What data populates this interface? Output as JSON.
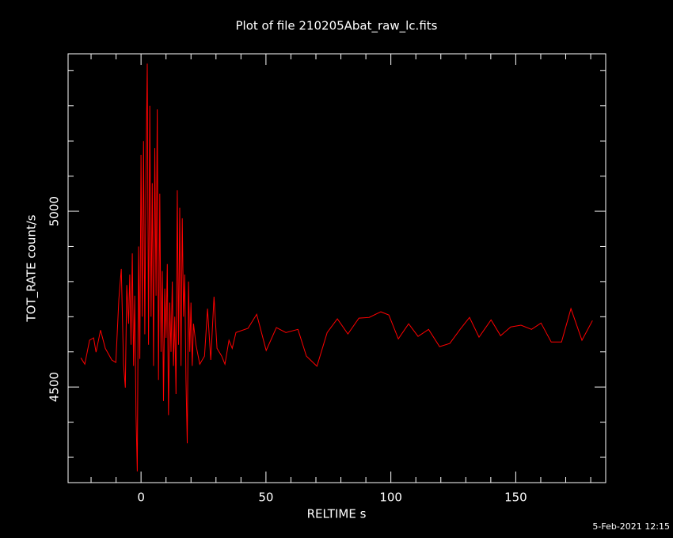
{
  "chart_data": {
    "type": "line",
    "title": "Plot of file 210205Abat_raw_lc.fits",
    "x_label": "RELTIME  s",
    "y_label": "TOT_RATE  count/s",
    "timestamp": "5-Feb-2021 12:15",
    "color": "#ff0000",
    "xlim": [
      -29.2,
      186
    ],
    "ylim": [
      4228,
      5448
    ],
    "xticks": [
      0,
      50,
      100,
      150
    ],
    "yticks": [
      4500,
      5000
    ],
    "xminorticks": [
      -20,
      -10,
      10,
      20,
      30,
      40,
      60,
      70,
      80,
      90,
      110,
      120,
      130,
      140,
      160,
      170,
      180
    ],
    "yminorticks": [
      4300,
      4400,
      4600,
      4700,
      4800,
      4900,
      5100,
      5200,
      5300,
      5400
    ],
    "x": [
      -24.1,
      -22.5,
      -20.6,
      -19,
      -18,
      -16.2,
      -14.3,
      -11.7,
      -10.1,
      -8.9,
      -7.9,
      -7,
      -6.3,
      -5.7,
      -5,
      -4.5,
      -4,
      -3.5,
      -3,
      -2.5,
      -2,
      -1.5,
      -1,
      -0.5,
      0,
      0.5,
      1,
      1.5,
      2,
      2.5,
      3,
      3.5,
      4,
      4.5,
      5,
      5.5,
      6,
      6.5,
      7,
      7.5,
      8,
      8.5,
      9,
      9.5,
      10,
      10.5,
      11,
      11.5,
      12,
      12.5,
      13,
      13.5,
      14,
      14.5,
      15,
      15.5,
      16,
      16.5,
      17,
      17.5,
      18,
      18.5,
      19,
      19.5,
      20,
      20.5,
      21,
      22,
      23.5,
      25.4,
      26.6,
      27.9,
      29.2,
      30.4,
      32.3,
      33.6,
      35.2,
      36.5,
      38,
      42.8,
      46.3,
      50.1,
      54.2,
      58,
      62.8,
      66.2,
      70.4,
      74.5,
      78.6,
      82.8,
      87.2,
      91.3,
      96,
      99.2,
      103,
      107.1,
      110.9,
      115.1,
      119.5,
      123.6,
      127.7,
      131.5,
      135.3,
      140.1,
      143.9,
      148,
      152.1,
      156.3,
      160.1,
      164.2,
      168.3,
      172.1,
      176.5,
      180.7
    ],
    "values": [
      4583,
      4565,
      4633,
      4640,
      4599,
      4662,
      4610,
      4577,
      4570,
      4750,
      4836,
      4565,
      4498,
      4790,
      4680,
      4820,
      4620,
      4880,
      4560,
      4760,
      4420,
      4260,
      4900,
      4580,
      5160,
      4700,
      5200,
      4650,
      5120,
      5420,
      4620,
      5300,
      4700,
      5080,
      4560,
      5180,
      4760,
      5290,
      4520,
      5050,
      4600,
      4830,
      4460,
      4780,
      4640,
      4850,
      4420,
      4740,
      4600,
      4800,
      4560,
      4700,
      4480,
      5060,
      4620,
      5010,
      4560,
      4980,
      4700,
      4820,
      4520,
      4340,
      4800,
      4600,
      4740,
      4560,
      4680,
      4620,
      4565,
      4588,
      4723,
      4577,
      4757,
      4610,
      4588,
      4565,
      4633,
      4610,
      4655,
      4667,
      4707,
      4604,
      4669,
      4655,
      4664,
      4588,
      4559,
      4655,
      4694,
      4651,
      4696,
      4698,
      4714,
      4705,
      4637,
      4680,
      4644,
      4664,
      4615,
      4624,
      4664,
      4698,
      4642,
      4691,
      4646,
      4671,
      4676,
      4664,
      4682,
      4628,
      4628,
      4723,
      4633,
      4689
    ]
  }
}
